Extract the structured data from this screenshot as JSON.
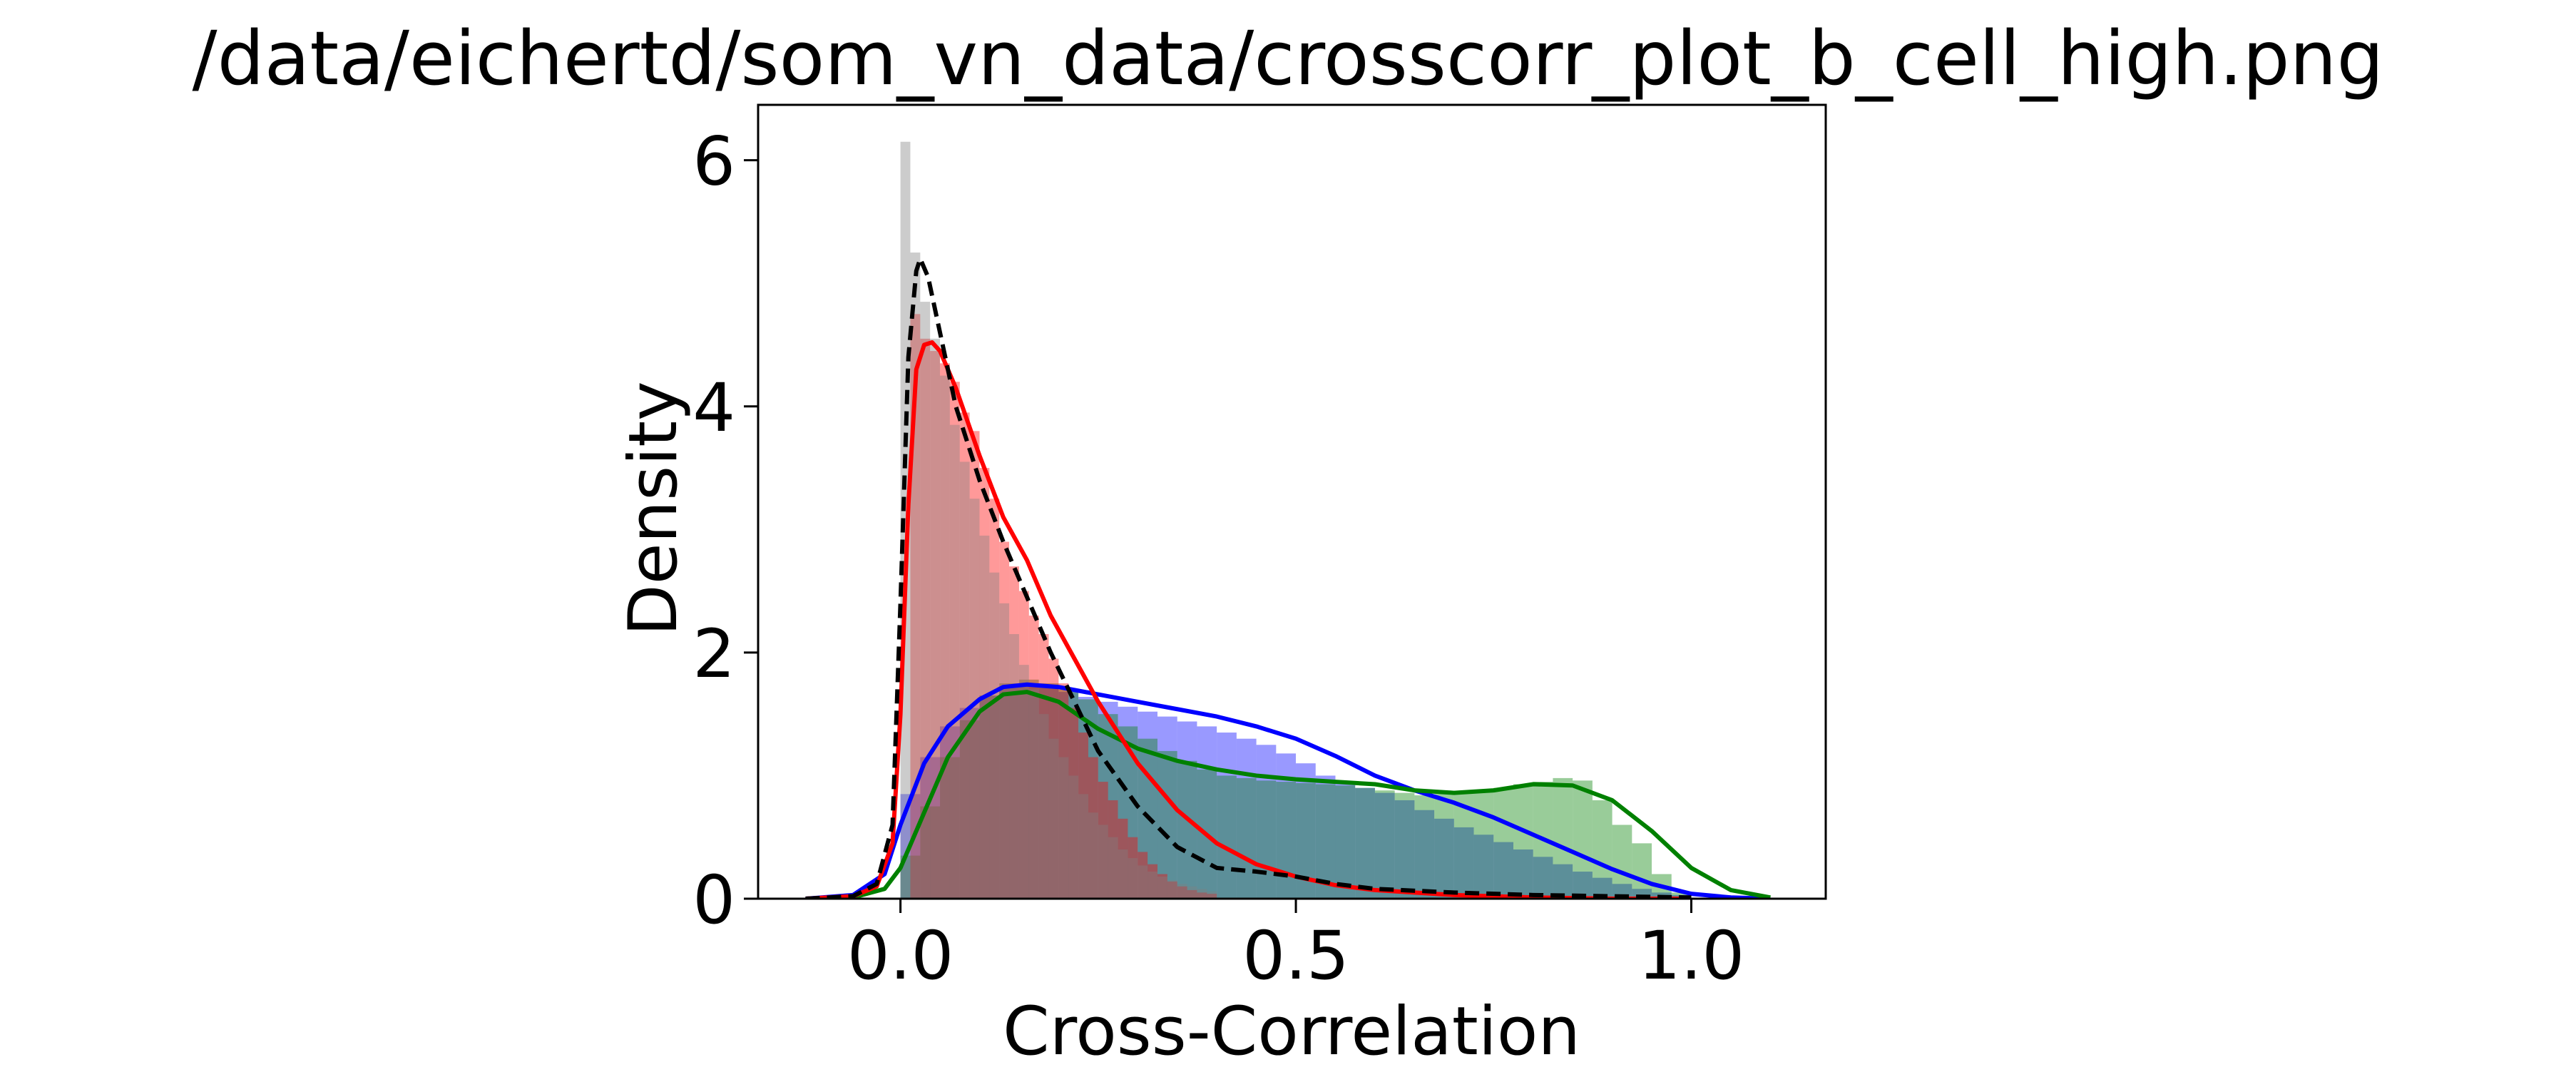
{
  "chart_data": {
    "type": "histogram+kde",
    "title": "/data/eichertd/som_vn_data/crosscorr_plot_b_cell_high.png",
    "xlabel": "Cross-Correlation",
    "ylabel": "Density",
    "xlim": [
      -0.18,
      1.17
    ],
    "ylim": [
      0,
      6.45
    ],
    "xticks": [
      0.0,
      0.5,
      1.0
    ],
    "xtick_labels": [
      "0.0",
      "0.5",
      "1.0"
    ],
    "yticks": [
      0,
      2,
      4,
      6
    ],
    "ytick_labels": [
      "0",
      "2",
      "4",
      "6"
    ],
    "grid": false,
    "legend": "none",
    "series": [
      {
        "color": "#0000ff",
        "kde_style": "solid",
        "bin_width": 0.025,
        "bin_start": 0.0,
        "hist": [
          0.85,
          1.15,
          1.4,
          1.55,
          1.65,
          1.72,
          1.74,
          1.72,
          1.68,
          1.64,
          1.6,
          1.56,
          1.52,
          1.48,
          1.44,
          1.4,
          1.35,
          1.3,
          1.25,
          1.18,
          1.1,
          1.0,
          0.95,
          0.9,
          0.86,
          0.8,
          0.72,
          0.65,
          0.58,
          0.52,
          0.46,
          0.4,
          0.34,
          0.28,
          0.22,
          0.17,
          0.12,
          0.08,
          0.05,
          0.03
        ],
        "kde_x": [
          -0.12,
          -0.06,
          -0.02,
          0.0,
          0.03,
          0.06,
          0.1,
          0.13,
          0.16,
          0.2,
          0.25,
          0.3,
          0.35,
          0.4,
          0.45,
          0.5,
          0.55,
          0.6,
          0.65,
          0.7,
          0.75,
          0.8,
          0.85,
          0.9,
          0.95,
          1.0,
          1.05,
          1.1
        ],
        "kde_y": [
          0.0,
          0.03,
          0.2,
          0.6,
          1.1,
          1.4,
          1.62,
          1.72,
          1.74,
          1.72,
          1.66,
          1.6,
          1.54,
          1.48,
          1.4,
          1.3,
          1.16,
          1.0,
          0.88,
          0.78,
          0.66,
          0.52,
          0.38,
          0.24,
          0.12,
          0.04,
          0.01,
          0.0
        ]
      },
      {
        "color": "#008000",
        "kde_style": "solid",
        "bin_width": 0.025,
        "bin_start": 0.0,
        "hist": [
          0.35,
          0.75,
          1.15,
          1.45,
          1.65,
          1.75,
          1.78,
          1.75,
          1.7,
          1.62,
          1.5,
          1.4,
          1.3,
          1.2,
          1.12,
          1.05,
          1.0,
          0.98,
          0.96,
          0.95,
          0.94,
          0.93,
          0.92,
          0.9,
          0.88,
          0.86,
          0.84,
          0.85,
          0.86,
          0.88,
          0.9,
          0.93,
          0.95,
          0.98,
          0.96,
          0.8,
          0.6,
          0.45,
          0.2,
          0.05
        ],
        "kde_x": [
          -0.12,
          -0.06,
          -0.02,
          0.0,
          0.03,
          0.06,
          0.1,
          0.13,
          0.16,
          0.2,
          0.25,
          0.3,
          0.35,
          0.4,
          0.45,
          0.5,
          0.55,
          0.6,
          0.65,
          0.7,
          0.75,
          0.8,
          0.85,
          0.9,
          0.95,
          1.0,
          1.05,
          1.1
        ],
        "kde_y": [
          0.0,
          0.01,
          0.08,
          0.25,
          0.7,
          1.15,
          1.52,
          1.66,
          1.68,
          1.6,
          1.38,
          1.22,
          1.12,
          1.05,
          1.0,
          0.97,
          0.95,
          0.93,
          0.88,
          0.86,
          0.88,
          0.93,
          0.92,
          0.8,
          0.55,
          0.25,
          0.07,
          0.01
        ]
      },
      {
        "color": "#ff0000",
        "kde_style": "solid",
        "bin_width": 0.0125,
        "bin_start": 0.0,
        "hist": [
          0.0,
          4.75,
          4.55,
          4.45,
          4.35,
          4.2,
          3.95,
          3.8,
          3.5,
          3.25,
          2.9,
          2.7,
          2.5,
          2.3,
          2.15,
          1.95,
          1.75,
          1.55,
          1.35,
          1.15,
          0.95,
          0.8,
          0.65,
          0.5,
          0.38,
          0.28,
          0.2,
          0.14,
          0.1,
          0.07,
          0.05,
          0.04
        ],
        "kde_x": [
          -0.12,
          -0.06,
          -0.03,
          -0.01,
          0.0,
          0.01,
          0.02,
          0.03,
          0.04,
          0.05,
          0.07,
          0.1,
          0.13,
          0.16,
          0.19,
          0.22,
          0.25,
          0.3,
          0.35,
          0.4,
          0.45,
          0.5,
          0.55,
          0.6,
          0.7,
          0.8,
          0.9,
          1.0
        ],
        "kde_y": [
          0.0,
          0.02,
          0.1,
          0.45,
          1.5,
          3.2,
          4.3,
          4.5,
          4.52,
          4.45,
          4.15,
          3.6,
          3.1,
          2.75,
          2.3,
          1.95,
          1.6,
          1.1,
          0.72,
          0.45,
          0.28,
          0.18,
          0.11,
          0.07,
          0.03,
          0.01,
          0.0,
          0.0
        ]
      },
      {
        "color": "#808080",
        "kde_style": "dashed",
        "kde_color": "#000000",
        "bin_width": 0.0125,
        "bin_start": 0.0,
        "hist": [
          6.15,
          5.25,
          4.85,
          4.55,
          4.25,
          3.85,
          3.55,
          3.25,
          2.95,
          2.65,
          2.4,
          2.15,
          1.9,
          1.7,
          1.5,
          1.3,
          1.15,
          1.0,
          0.85,
          0.7,
          0.6,
          0.5,
          0.4,
          0.33,
          0.27,
          0.22,
          0.18,
          0.15,
          0.12,
          0.1,
          0.08,
          0.06
        ],
        "kde_x": [
          -0.12,
          -0.06,
          -0.03,
          -0.01,
          0.0,
          0.01,
          0.02,
          0.025,
          0.035,
          0.05,
          0.07,
          0.1,
          0.13,
          0.16,
          0.19,
          0.22,
          0.25,
          0.3,
          0.35,
          0.4,
          0.45,
          0.5,
          0.55,
          0.6,
          0.7,
          0.8,
          0.9,
          1.0
        ],
        "kde_y": [
          0.0,
          0.02,
          0.12,
          0.6,
          2.4,
          4.4,
          5.1,
          5.2,
          5.05,
          4.6,
          4.0,
          3.4,
          2.9,
          2.45,
          2.0,
          1.6,
          1.2,
          0.75,
          0.42,
          0.25,
          0.22,
          0.18,
          0.12,
          0.08,
          0.05,
          0.03,
          0.02,
          0.01
        ]
      }
    ]
  }
}
